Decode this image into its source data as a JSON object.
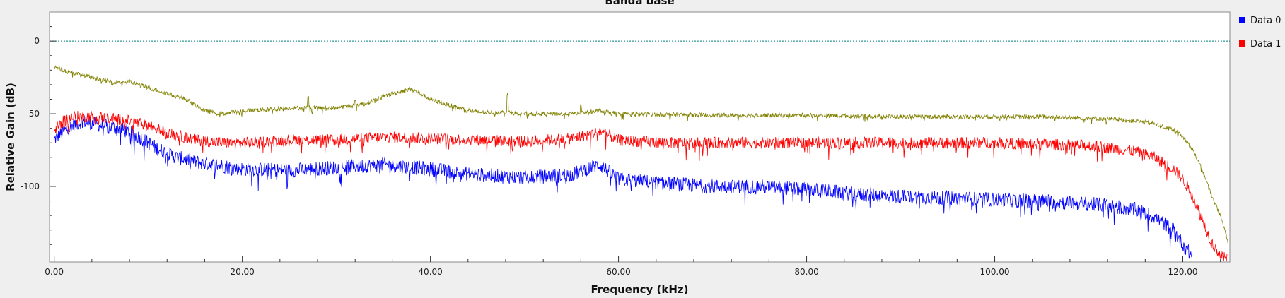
{
  "chart_data": {
    "type": "line",
    "title": "Banda base",
    "xlabel": "Frequency (kHz)",
    "ylabel": "Relative Gain (dB)",
    "xlim": [
      -0.5,
      125.0
    ],
    "ylim": [
      -152,
      20
    ],
    "xticks": [
      "0.00",
      "20.00",
      "40.00",
      "60.00",
      "80.00",
      "100.00",
      "120.00"
    ],
    "xtick_values": [
      0,
      20,
      40,
      60,
      80,
      100,
      120
    ],
    "yticks": [
      "0",
      "-50",
      "-100"
    ],
    "ytick_values": [
      0,
      -50,
      -100
    ],
    "reference_line": {
      "y": 0,
      "color": "#008080"
    },
    "legend_position": "right",
    "grid": false,
    "series": [
      {
        "name": "Data 0",
        "color": "#0000ff",
        "x": [
          0,
          1,
          2,
          3,
          5,
          7,
          9,
          11,
          13,
          15,
          17,
          20,
          25,
          30,
          35,
          40,
          45,
          50,
          55,
          57,
          58,
          60,
          65,
          70,
          75,
          80,
          85,
          90,
          95,
          100,
          105,
          110,
          112,
          115,
          117,
          119,
          120,
          121
        ],
        "y": [
          -68,
          -62,
          -58,
          -55,
          -58,
          -60,
          -66,
          -74,
          -80,
          -83,
          -85,
          -88,
          -89,
          -87,
          -85,
          -88,
          -92,
          -94,
          -92,
          -87,
          -85,
          -95,
          -98,
          -100,
          -100,
          -102,
          -105,
          -107,
          -108,
          -109,
          -110,
          -112,
          -113,
          -116,
          -121,
          -130,
          -140,
          -148
        ],
        "noise": 5
      },
      {
        "name": "Data 1",
        "color": "#ff0000",
        "x": [
          0,
          1,
          2,
          4,
          6,
          8,
          10,
          12,
          15,
          18,
          20,
          25,
          30,
          35,
          40,
          45,
          50,
          55,
          57,
          58,
          60,
          65,
          70,
          80,
          90,
          100,
          105,
          110,
          113,
          115,
          117,
          119,
          120,
          121,
          122,
          123,
          124,
          124.7
        ],
        "y": [
          -62,
          -55,
          -52,
          -52,
          -53,
          -55,
          -58,
          -63,
          -68,
          -70,
          -70,
          -68,
          -68,
          -66,
          -67,
          -68,
          -69,
          -67,
          -64,
          -62,
          -68,
          -70,
          -70,
          -70,
          -70,
          -70,
          -71,
          -72,
          -74,
          -76,
          -80,
          -88,
          -95,
          -106,
          -122,
          -138,
          -148,
          -150
        ],
        "noise": 4
      },
      {
        "name": "",
        "color": "#808000",
        "x": [
          0,
          1,
          2,
          4,
          6,
          8,
          10,
          12,
          14,
          16,
          18,
          20,
          25,
          30,
          33,
          36,
          38,
          40,
          43,
          45,
          48,
          50,
          55,
          58,
          60,
          70,
          80,
          90,
          100,
          105,
          110,
          113,
          115,
          117,
          119,
          120,
          121,
          122,
          123,
          124,
          124.8
        ],
        "y": [
          -18,
          -20,
          -22,
          -25,
          -28,
          -28,
          -32,
          -36,
          -40,
          -48,
          -50,
          -48,
          -46,
          -46,
          -43,
          -36,
          -33,
          -40,
          -46,
          -49,
          -49,
          -50,
          -50,
          -48,
          -50,
          -51,
          -51,
          -52,
          -52,
          -52,
          -53,
          -54,
          -55,
          -57,
          -61,
          -66,
          -74,
          -88,
          -105,
          -120,
          -138
        ],
        "noise": 1.5,
        "spikes": [
          [
            27,
            -38
          ],
          [
            48.2,
            -36
          ],
          [
            32,
            -42
          ],
          [
            56,
            -44
          ]
        ]
      }
    ]
  }
}
